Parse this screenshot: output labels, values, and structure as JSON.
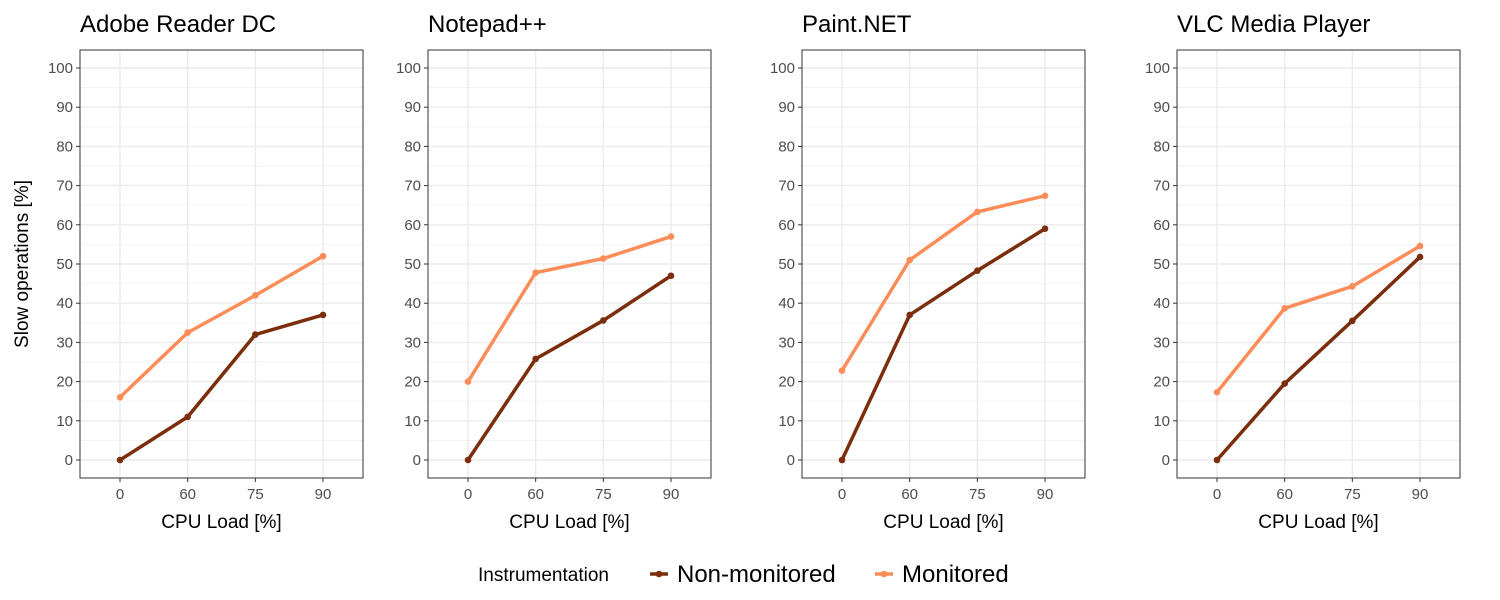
{
  "chart_data": {
    "type": "line",
    "ylabel": "Slow operations [%]",
    "xlabel": "CPU Load [%]",
    "categories": [
      "0",
      "60",
      "75",
      "90"
    ],
    "ylim": [
      0,
      100
    ],
    "yticks": [
      "0",
      "10",
      "20",
      "30",
      "40",
      "50",
      "60",
      "70",
      "80",
      "90",
      "100"
    ],
    "grid": true,
    "legend": {
      "title": "Instrumentation",
      "position": "bottom",
      "entries": [
        {
          "name": "Non-monitored",
          "color": "#7b2d0c"
        },
        {
          "name": "Monitored",
          "color": "#fc8d59"
        }
      ]
    },
    "facets": [
      {
        "title": "Adobe Reader DC",
        "series": [
          {
            "name": "Non-monitored",
            "values": [
              0,
              11,
              32,
              37
            ]
          },
          {
            "name": "Monitored",
            "values": [
              16,
              32.5,
              42,
              52
            ]
          }
        ]
      },
      {
        "title": "Notepad++",
        "series": [
          {
            "name": "Non-monitored",
            "values": [
              0,
              25.8,
              35.6,
              47
            ]
          },
          {
            "name": "Monitored",
            "values": [
              20,
              47.8,
              51.4,
              57
            ]
          }
        ]
      },
      {
        "title": "Paint.NET",
        "series": [
          {
            "name": "Non-monitored",
            "values": [
              0,
              37,
              48.3,
              59
            ]
          },
          {
            "name": "Monitored",
            "values": [
              22.8,
              51,
              63.3,
              67.4
            ]
          }
        ]
      },
      {
        "title": "VLC Media Player",
        "series": [
          {
            "name": "Non-monitored",
            "values": [
              0,
              19.5,
              35.5,
              51.8
            ]
          },
          {
            "name": "Monitored",
            "values": [
              17.3,
              38.7,
              44.3,
              54.6
            ]
          }
        ]
      }
    ]
  }
}
